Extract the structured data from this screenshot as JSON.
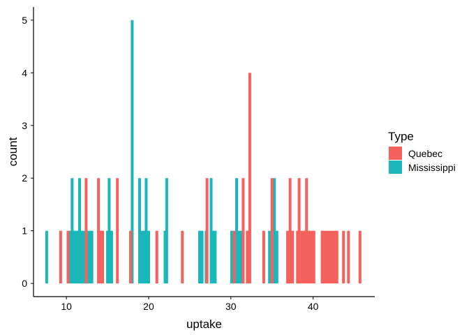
{
  "chart_data": {
    "type": "bar",
    "subtype": "histogram",
    "title": "",
    "xlabel": "uptake",
    "ylabel": "count",
    "xlim": [
      6,
      47.5
    ],
    "ylim": [
      -0.25,
      5.25
    ],
    "xticks": [
      10,
      20,
      30,
      40
    ],
    "yticks": [
      0,
      1,
      2,
      3,
      4,
      5
    ],
    "grid": false,
    "legend": {
      "title": "Type",
      "position": "right",
      "entries": [
        "Quebec",
        "Mississippi"
      ]
    },
    "series": [
      {
        "name": "Mississippi",
        "color": "#1AB7BA",
        "bins": [
          [
            7.6,
            1
          ],
          [
            10.5,
            1
          ],
          [
            10.7,
            2
          ],
          [
            11.0,
            1
          ],
          [
            11.3,
            1
          ],
          [
            11.6,
            2
          ],
          [
            11.9,
            1
          ],
          [
            12.2,
            1
          ],
          [
            12.5,
            1
          ],
          [
            12.8,
            1
          ],
          [
            13.1,
            1
          ],
          [
            14.4,
            1
          ],
          [
            15.0,
            1
          ],
          [
            15.2,
            2
          ],
          [
            15.5,
            1
          ],
          [
            18.0,
            5
          ],
          [
            18.9,
            2
          ],
          [
            19.1,
            1
          ],
          [
            19.4,
            1
          ],
          [
            19.7,
            2
          ],
          [
            20.0,
            1
          ],
          [
            22.0,
            1
          ],
          [
            22.2,
            2
          ],
          [
            26.2,
            1
          ],
          [
            26.5,
            1
          ],
          [
            27.0,
            1
          ],
          [
            27.6,
            2
          ],
          [
            27.9,
            1
          ],
          [
            28.1,
            1
          ],
          [
            30.1,
            1
          ],
          [
            30.4,
            1
          ],
          [
            30.7,
            2
          ],
          [
            30.9,
            1
          ],
          [
            31.2,
            1
          ],
          [
            31.5,
            1
          ],
          [
            34.7,
            1
          ],
          [
            35.3,
            2
          ],
          [
            35.6,
            1
          ]
        ]
      },
      {
        "name": "Quebec",
        "color": "#F5625E",
        "bins": [
          [
            9.3,
            1
          ],
          [
            10.2,
            1
          ],
          [
            12.4,
            2
          ],
          [
            13.9,
            2
          ],
          [
            14.1,
            1
          ],
          [
            14.4,
            1
          ],
          [
            16.2,
            2
          ],
          [
            17.8,
            1
          ],
          [
            21.0,
            1
          ],
          [
            24.1,
            1
          ],
          [
            27.1,
            2
          ],
          [
            30.4,
            1
          ],
          [
            31.5,
            2
          ],
          [
            32.0,
            1
          ],
          [
            32.3,
            4
          ],
          [
            34.0,
            1
          ],
          [
            35.0,
            2
          ],
          [
            36.9,
            1
          ],
          [
            37.2,
            2
          ],
          [
            37.5,
            1
          ],
          [
            38.1,
            1
          ],
          [
            38.3,
            2
          ],
          [
            38.6,
            1
          ],
          [
            38.9,
            1
          ],
          [
            39.2,
            2
          ],
          [
            39.5,
            1
          ],
          [
            39.8,
            1
          ],
          [
            40.1,
            1
          ],
          [
            41.1,
            1
          ],
          [
            41.4,
            1
          ],
          [
            41.7,
            1
          ],
          [
            42.0,
            1
          ],
          [
            42.3,
            1
          ],
          [
            42.6,
            1
          ],
          [
            42.9,
            1
          ],
          [
            43.7,
            1
          ],
          [
            44.3,
            1
          ],
          [
            45.7,
            1
          ]
        ]
      }
    ]
  }
}
